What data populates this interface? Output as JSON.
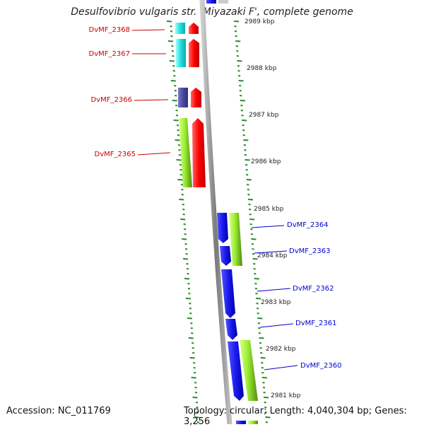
{
  "title": "Desulfovibrio vulgaris str. 'Miyazaki F', complete genome",
  "footer": {
    "accession": "Accession: NC_011769",
    "stats": "Topology: circular; Length: 4,040,304 bp; Genes: 3,256"
  },
  "colors": {
    "left_label": "#cc0000",
    "right_label": "#0000cc",
    "backbone": "#888888",
    "tick": "#2a8a2a",
    "cyan": "#22dddd",
    "red": "#ff1111",
    "navy": "#4a4a99",
    "lime": "#99ee33",
    "blue": "#1a1aee"
  },
  "kbp_labels": [
    "2989 kbp",
    "2988 kbp",
    "2987 kbp",
    "2986 kbp",
    "2985 kbp",
    "2984 kbp",
    "2983 kbp",
    "2982 kbp",
    "2981 kbp"
  ],
  "left_genes": [
    "DvMF_2368",
    "DvMF_2367",
    "DvMF_2366",
    "DvMF_2365"
  ],
  "right_genes": [
    "DvMF_2364",
    "DvMF_2363",
    "DvMF_2362",
    "DvMF_2361",
    "DvMF_2360"
  ]
}
